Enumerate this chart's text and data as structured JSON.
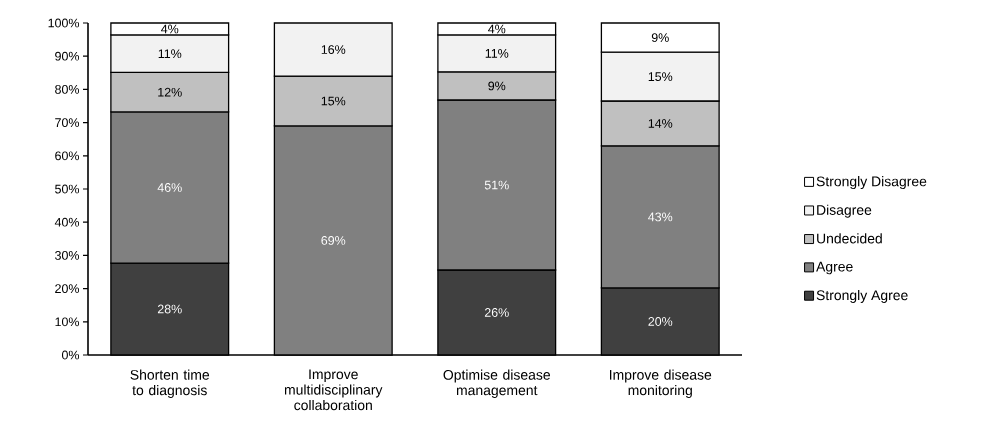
{
  "chart_data": {
    "type": "bar",
    "stacked": true,
    "categories": [
      "Shorten time to diagnosis",
      "Improve multidisciplinary collaboration",
      "Optimise disease management",
      "Improve disease monitoring"
    ],
    "series": [
      {
        "name": "Strongly Agree",
        "color": "#404040",
        "values": [
          27.7,
          null,
          25.6,
          20.2
        ],
        "value_labels": [
          "28%",
          null,
          "26%",
          "20%"
        ]
      },
      {
        "name": "Agree",
        "color": "#808080",
        "values": [
          45.5,
          69,
          51.2,
          42.8
        ],
        "value_labels": [
          "46%",
          "69%",
          "51%",
          "43%"
        ]
      },
      {
        "name": "Undecided",
        "color": "#c0c0c0",
        "values": [
          11.9,
          15,
          8.5,
          13.5
        ],
        "value_labels": [
          "12%",
          "15%",
          "9%",
          "14%"
        ]
      },
      {
        "name": "Disagree",
        "color": "#f2f2f2",
        "values": [
          11.3,
          16,
          11.1,
          14.7
        ],
        "value_labels": [
          "11%",
          "16%",
          "11%",
          "15%"
        ]
      },
      {
        "name": "Strongly Disagree",
        "color": "#ffffff",
        "values": [
          3.6,
          null,
          3.6,
          8.8
        ],
        "value_labels": [
          "4%",
          null,
          "4%",
          "9%"
        ]
      }
    ],
    "ylim": [
      0,
      100
    ],
    "yticks": [
      {
        "value": 0,
        "label": "0%"
      },
      {
        "value": 10,
        "label": "10%"
      },
      {
        "value": 20,
        "label": "20%"
      },
      {
        "value": 30,
        "label": "30%"
      },
      {
        "value": 40,
        "label": "40%"
      },
      {
        "value": 50,
        "label": "50%"
      },
      {
        "value": 60,
        "label": "60%"
      },
      {
        "value": 70,
        "label": "70%"
      },
      {
        "value": 80,
        "label": "80%"
      },
      {
        "value": 90,
        "label": "90%"
      },
      {
        "value": 100,
        "label": "100%"
      }
    ],
    "legend": "right"
  }
}
